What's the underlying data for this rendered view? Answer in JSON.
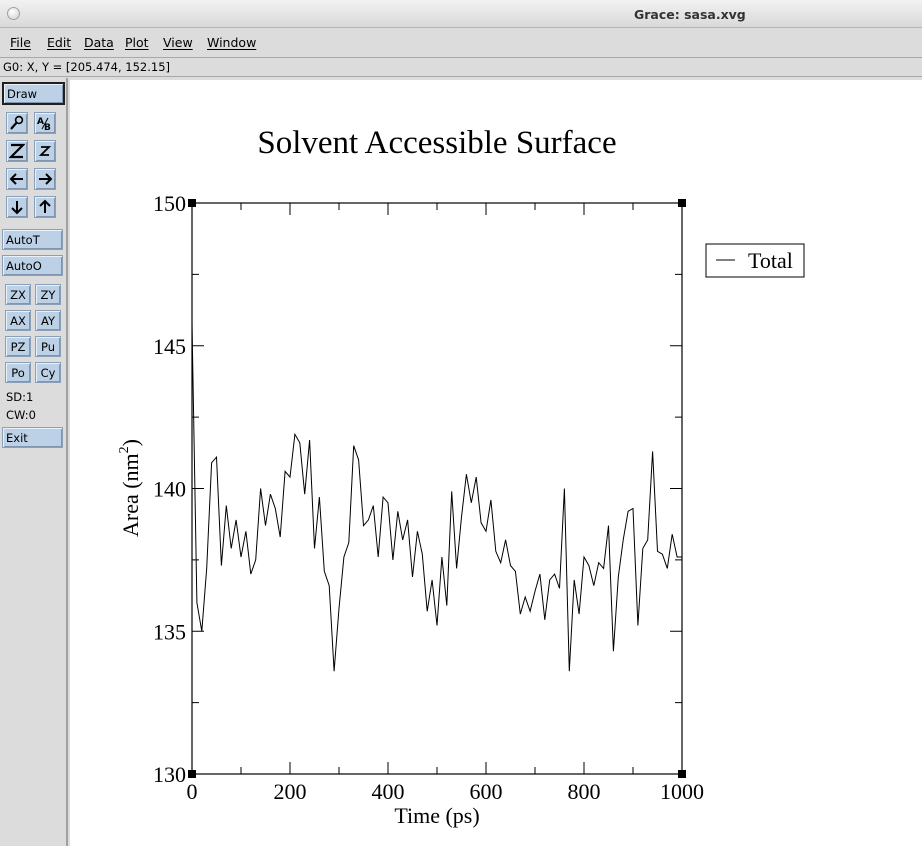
{
  "window": {
    "title": "Grace: sasa.xvg"
  },
  "menu": [
    "File",
    "Edit",
    "Data",
    "Plot",
    "View",
    "Window"
  ],
  "locator": "G0: X, Y = [205.474, 152.15]",
  "toolbar": {
    "draw": "Draw",
    "autot": "AutoT",
    "autoo": "AutoO",
    "grid": [
      "ZX",
      "ZY",
      "AX",
      "AY",
      "PZ",
      "Pu",
      "Po",
      "Cy"
    ],
    "sd": "SD:1",
    "cw": "CW:0",
    "exit": "Exit",
    "icons": [
      "magnify-icon",
      "text-icon",
      "zoom-in-icon",
      "zoom-out-icon",
      "arrow-left-icon",
      "arrow-right-icon",
      "arrow-down-icon",
      "arrow-up-icon"
    ]
  },
  "chart_data": {
    "type": "line",
    "title": "Solvent Accessible Surface",
    "xlabel": "Time (ps)",
    "ylabel": "Area (nm²)",
    "ylabel_base": "Area (nm",
    "ylabel_sup": "2",
    "ylabel_close": ")",
    "xlim": [
      0,
      1000
    ],
    "ylim": [
      130,
      150
    ],
    "xticks": [
      0,
      200,
      400,
      600,
      800,
      1000
    ],
    "yticks": [
      130,
      135,
      140,
      145,
      150
    ],
    "legend_position": "top-right",
    "series": [
      {
        "name": "Total",
        "x": [
          0,
          10,
          20,
          30,
          40,
          50,
          60,
          70,
          80,
          90,
          100,
          110,
          120,
          130,
          140,
          150,
          160,
          170,
          180,
          190,
          200,
          210,
          220,
          230,
          240,
          250,
          260,
          270,
          280,
          290,
          300,
          310,
          320,
          330,
          340,
          350,
          360,
          370,
          380,
          390,
          400,
          410,
          420,
          430,
          440,
          450,
          460,
          470,
          480,
          490,
          500,
          510,
          520,
          530,
          540,
          550,
          560,
          570,
          580,
          590,
          600,
          610,
          620,
          630,
          640,
          650,
          660,
          670,
          680,
          690,
          700,
          710,
          720,
          730,
          740,
          750,
          760,
          770,
          780,
          790,
          800,
          810,
          820,
          830,
          840,
          850,
          860,
          870,
          880,
          890,
          900,
          910,
          920,
          930,
          940,
          950,
          960,
          970,
          980,
          990,
          1000
        ],
        "values": [
          145.8,
          136.0,
          135.0,
          137.2,
          140.9,
          141.1,
          137.3,
          139.4,
          137.9,
          138.9,
          137.6,
          138.5,
          137.0,
          137.5,
          140.0,
          138.7,
          139.8,
          139.3,
          138.3,
          140.6,
          140.4,
          141.9,
          141.6,
          139.8,
          141.7,
          137.9,
          139.7,
          137.1,
          136.6,
          133.6,
          135.8,
          137.6,
          138.1,
          141.5,
          141.0,
          138.7,
          138.9,
          139.4,
          137.6,
          139.7,
          139.5,
          137.5,
          139.2,
          138.2,
          138.9,
          136.9,
          138.5,
          137.7,
          135.7,
          136.8,
          135.2,
          137.6,
          135.9,
          139.9,
          137.2,
          139.0,
          140.5,
          139.5,
          140.4,
          138.8,
          138.5,
          139.6,
          137.8,
          137.4,
          138.2,
          137.3,
          137.1,
          135.6,
          136.2,
          135.7,
          136.4,
          137.0,
          135.4,
          136.8,
          137.0,
          136.5,
          140.0,
          133.6,
          136.8,
          135.6,
          137.6,
          137.3,
          136.6,
          137.4,
          137.2,
          138.7,
          134.3,
          136.9,
          138.2,
          139.2,
          139.3,
          135.2,
          137.9,
          138.2,
          141.3,
          137.8,
          137.7,
          137.2,
          138.4,
          137.6,
          137.6
        ]
      }
    ]
  }
}
